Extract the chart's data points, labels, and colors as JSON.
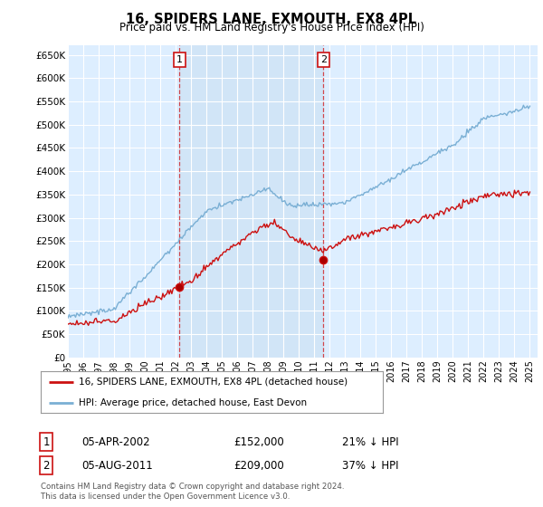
{
  "title": "16, SPIDERS LANE, EXMOUTH, EX8 4PL",
  "subtitle": "Price paid vs. HM Land Registry's House Price Index (HPI)",
  "ylabel_ticks": [
    "£0",
    "£50K",
    "£100K",
    "£150K",
    "£200K",
    "£250K",
    "£300K",
    "£350K",
    "£400K",
    "£450K",
    "£500K",
    "£550K",
    "£600K",
    "£650K"
  ],
  "ytick_values": [
    0,
    50000,
    100000,
    150000,
    200000,
    250000,
    300000,
    350000,
    400000,
    450000,
    500000,
    550000,
    600000,
    650000
  ],
  "ylim": [
    0,
    670000
  ],
  "background_color": "#ddeeff",
  "shade_color": "#d0e4f7",
  "grid_color": "#ffffff",
  "line_color_hpi": "#7aafd4",
  "line_color_property": "#cc1111",
  "vline_color": "#cc0000",
  "marker1_price": 152000,
  "marker2_price": 209000,
  "legend_property": "16, SPIDERS LANE, EXMOUTH, EX8 4PL (detached house)",
  "legend_hpi": "HPI: Average price, detached house, East Devon",
  "table_row1": [
    "1",
    "05-APR-2002",
    "£152,000",
    "21% ↓ HPI"
  ],
  "table_row2": [
    "2",
    "05-AUG-2011",
    "£209,000",
    "37% ↓ HPI"
  ],
  "footnote": "Contains HM Land Registry data © Crown copyright and database right 2024.\nThis data is licensed under the Open Government Licence v3.0."
}
